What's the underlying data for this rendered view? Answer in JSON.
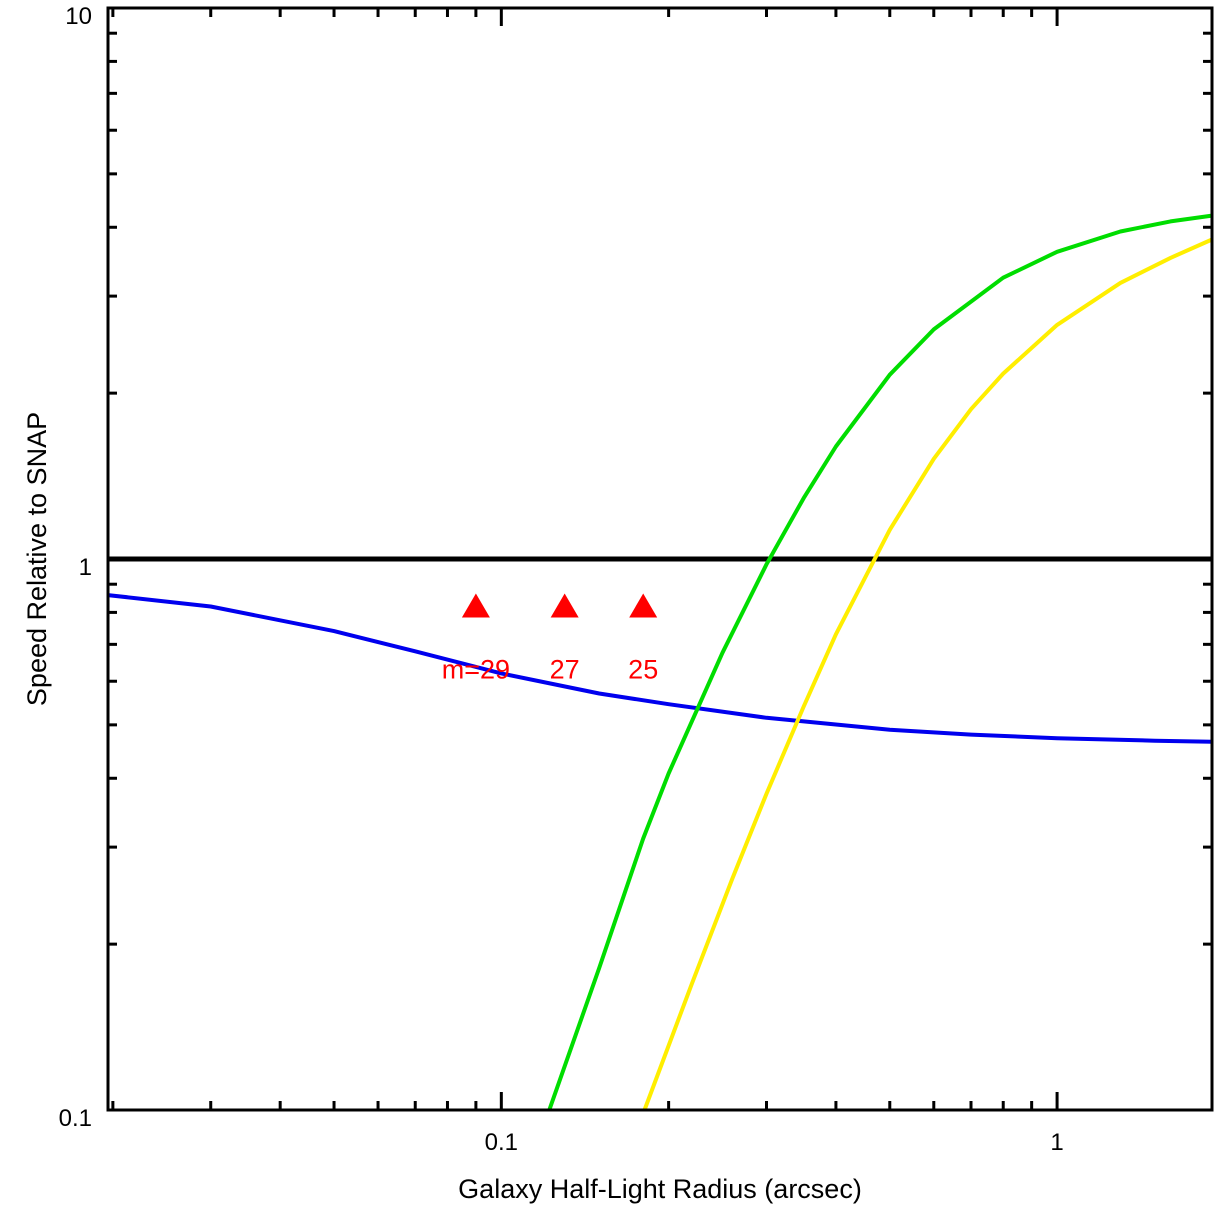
{
  "chart_data": {
    "type": "line",
    "xlabel": "Galaxy Half-Light Radius (arcsec)",
    "ylabel": "Speed Relative to SNAP",
    "xscale": "log",
    "yscale": "log",
    "xlim": [
      0.0196,
      1.9
    ],
    "ylim": [
      0.1,
      10
    ],
    "x_ticks": [
      {
        "value": 0.1,
        "label": "0.1"
      },
      {
        "value": 1,
        "label": "1"
      }
    ],
    "y_ticks": [
      {
        "value": 0.1,
        "label": "0.1"
      },
      {
        "value": 1,
        "label": "1"
      },
      {
        "value": 10,
        "label": "10"
      }
    ],
    "grid": false,
    "series": [
      {
        "color": "#000000",
        "x": [
          0.0196,
          1.9
        ],
        "y": [
          1.0,
          1.0
        ]
      },
      {
        "color": "#0000ee",
        "x": [
          0.0196,
          0.03,
          0.05,
          0.07,
          0.1,
          0.15,
          0.2,
          0.3,
          0.5,
          0.7,
          1.0,
          1.5,
          1.9
        ],
        "y": [
          0.86,
          0.82,
          0.74,
          0.68,
          0.62,
          0.57,
          0.545,
          0.515,
          0.49,
          0.48,
          0.473,
          0.468,
          0.466
        ]
      },
      {
        "color": "#00dd00",
        "x": [
          0.122,
          0.15,
          0.18,
          0.2,
          0.25,
          0.3,
          0.35,
          0.4,
          0.5,
          0.6,
          0.8,
          1.0,
          1.3,
          1.6,
          1.9
        ],
        "y": [
          0.1,
          0.181,
          0.311,
          0.408,
          0.676,
          0.978,
          1.29,
          1.6,
          2.16,
          2.61,
          3.24,
          3.61,
          3.93,
          4.1,
          4.2
        ]
      },
      {
        "color": "#ffee00",
        "x": [
          0.181,
          0.22,
          0.26,
          0.3,
          0.35,
          0.4,
          0.45,
          0.5,
          0.6,
          0.7,
          0.8,
          1.0,
          1.3,
          1.6,
          1.9
        ],
        "y": [
          0.1,
          0.169,
          0.262,
          0.375,
          0.54,
          0.73,
          0.92,
          1.13,
          1.52,
          1.87,
          2.17,
          2.66,
          3.17,
          3.52,
          3.8
        ]
      }
    ],
    "markers": [
      {
        "x": 0.09,
        "y": 0.82,
        "label": "m=29",
        "color": "#ff0000"
      },
      {
        "x": 0.13,
        "y": 0.82,
        "label": "27",
        "color": "#ff0000"
      },
      {
        "x": 0.18,
        "y": 0.82,
        "label": "25",
        "color": "#ff0000"
      }
    ]
  }
}
